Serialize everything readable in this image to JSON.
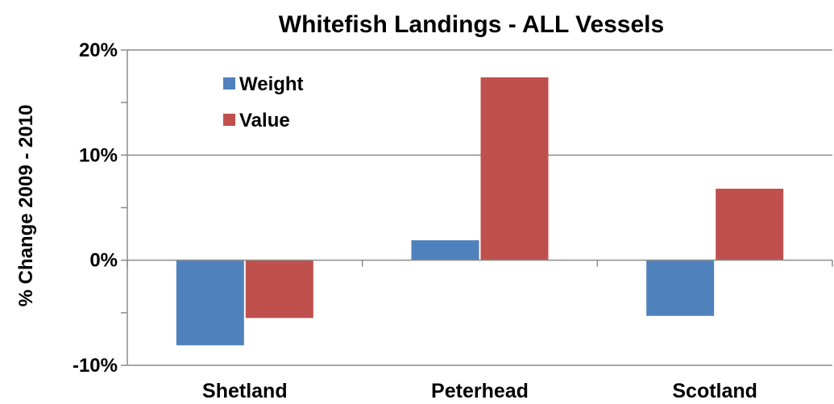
{
  "chart_data": {
    "type": "bar",
    "title": "Whitefish Landings - ALL Vessels",
    "xlabel": "",
    "ylabel": "% Change 2009 - 2010",
    "categories": [
      "Shetland",
      "Peterhead",
      "Scotland"
    ],
    "series": [
      {
        "name": "Weight",
        "color": "#4f81bd",
        "values": [
          -8.1,
          1.9,
          -5.3
        ]
      },
      {
        "name": "Value",
        "color": "#c0504d",
        "values": [
          -5.5,
          17.4,
          6.8
        ]
      }
    ],
    "ylim": [
      -10,
      20
    ],
    "y_ticks": [
      "20%",
      "10%",
      "0%",
      "-10%"
    ],
    "y_tick_values": [
      20,
      10,
      0,
      -10
    ],
    "grid": true,
    "legend_position": "top-left"
  }
}
